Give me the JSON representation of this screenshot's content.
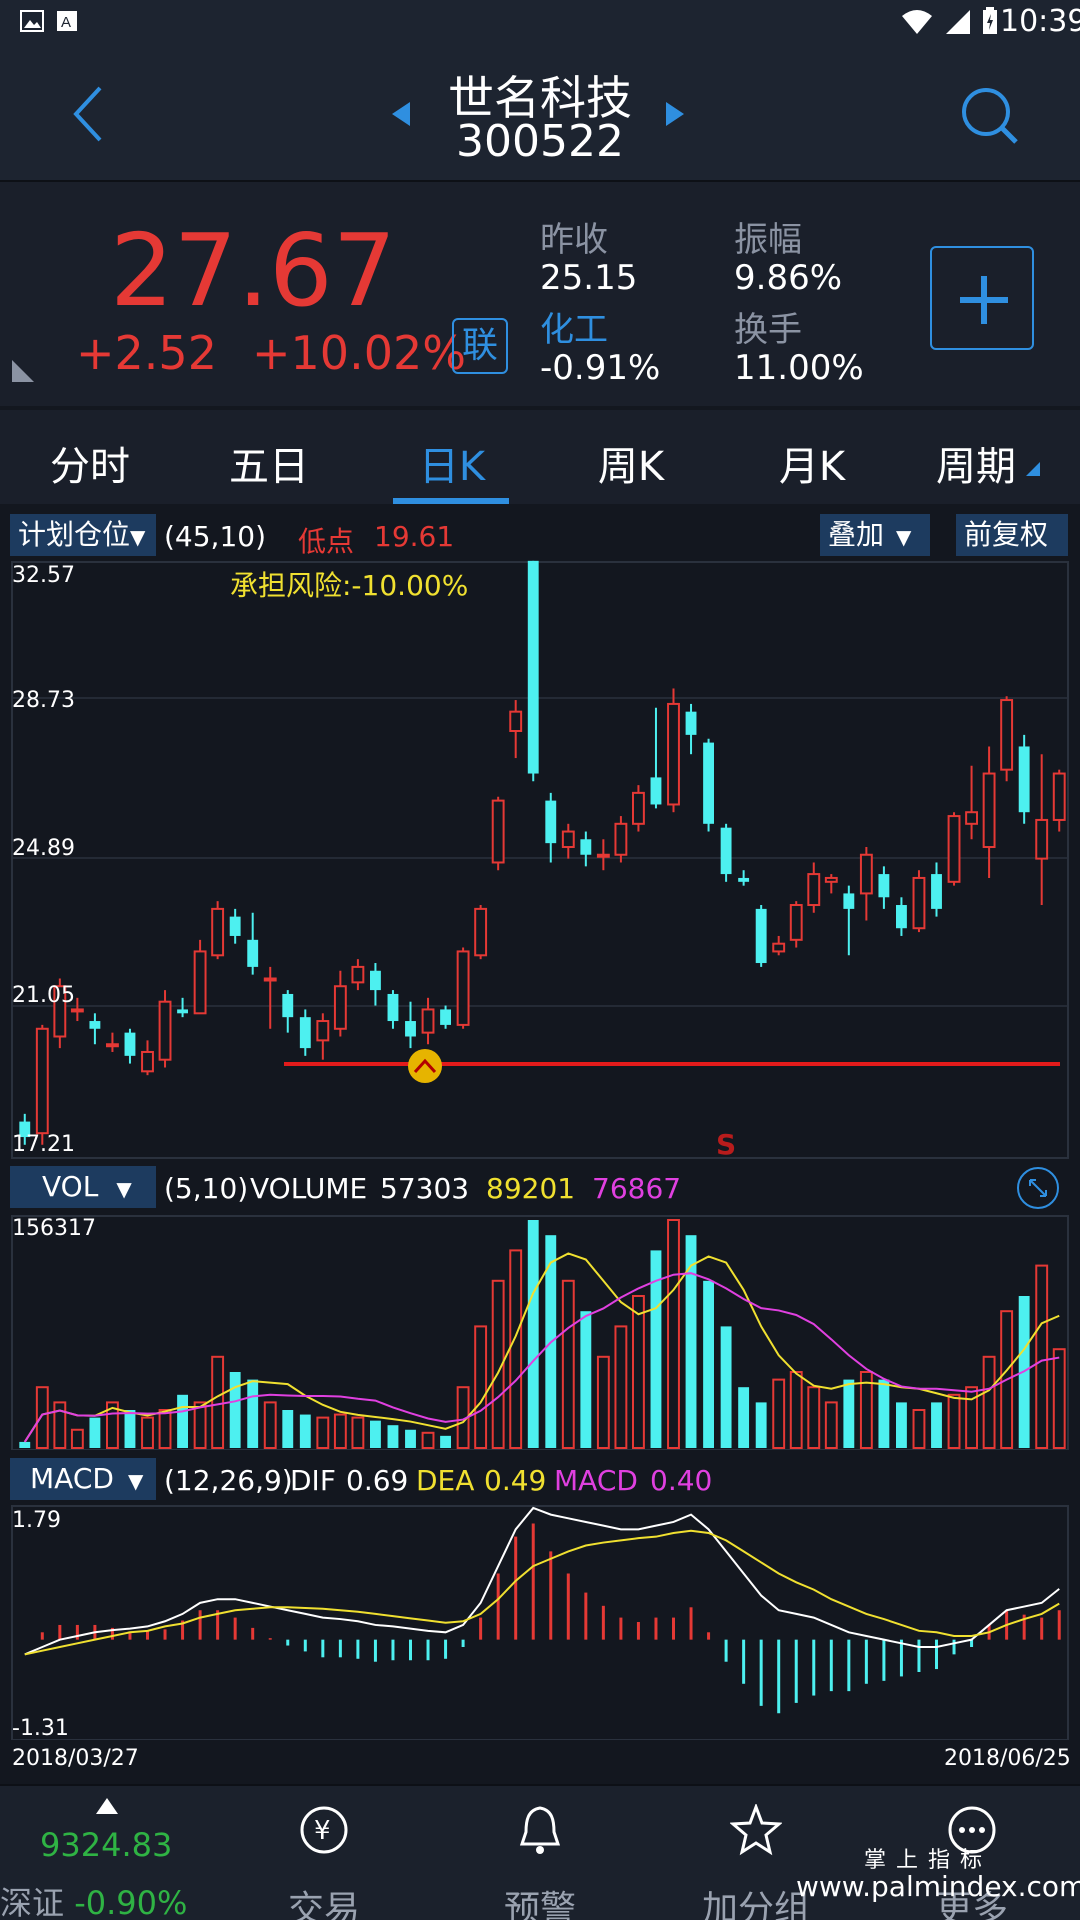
{
  "status_bar": {
    "time": "10:39"
  },
  "header": {
    "stock_name": "世名科技",
    "stock_code": "300522"
  },
  "quote": {
    "price": "27.67",
    "change": "+2.52",
    "change_pct": "+10.02%",
    "link_label": "联",
    "prev_close_label": "昨收",
    "prev_close": "25.15",
    "amplitude_label": "振幅",
    "amplitude": "9.86%",
    "sector_label": "化工",
    "sector_change": "-0.91%",
    "turnover_label": "换手",
    "turnover": "11.00%"
  },
  "tabs": [
    "分时",
    "五日",
    "日K",
    "周K",
    "月K",
    "周期"
  ],
  "kline": {
    "indicator_dropdown": "计划仓位",
    "params": "(45,10)",
    "low_label": "低点",
    "low_value": "19.61",
    "risk": "承担风险:-10.00%",
    "overlay_button": "叠加",
    "adjust_button": "前复权",
    "y_ticks": [
      "32.57",
      "28.73",
      "24.89",
      "21.05",
      "17.21"
    ],
    "signal": "S",
    "colors": {
      "up": "#e53935",
      "down": "#4df0f0"
    }
  },
  "volume": {
    "dropdown": "VOL",
    "params": "(5,10)",
    "volume_label": "VOLUME",
    "v1": "57303",
    "v2": "89201",
    "v3": "76867",
    "y_max": "156317"
  },
  "macd": {
    "dropdown": "MACD",
    "params": "(12,26,9)",
    "dif_label": "DIF",
    "dif": "0.69",
    "dea_label": "DEA",
    "dea": "0.49",
    "macd_label": "MACD",
    "macd": "0.40",
    "y_max": "1.79",
    "y_min": "-1.31",
    "date_start": "2018/03/27",
    "date_end": "2018/06/25"
  },
  "chart_data": {
    "type": "candlestick",
    "ylim": [
      17.21,
      32.57
    ],
    "candles": [
      [
        18.1,
        17.7,
        18.3,
        17.5
      ],
      [
        17.8,
        20.5,
        20.6,
        17.5
      ],
      [
        20.3,
        21.6,
        21.8,
        20.0
      ],
      [
        21.0,
        21.0,
        21.3,
        20.7
      ],
      [
        20.7,
        20.5,
        20.9,
        20.1
      ],
      [
        20.1,
        20.1,
        20.4,
        19.9
      ],
      [
        20.4,
        19.8,
        20.5,
        19.6
      ],
      [
        19.4,
        19.9,
        20.2,
        19.3
      ],
      [
        19.7,
        21.2,
        21.5,
        19.5
      ],
      [
        21.0,
        20.9,
        21.3,
        20.8
      ],
      [
        20.9,
        22.5,
        22.8,
        20.9
      ],
      [
        22.4,
        23.6,
        23.8,
        22.3
      ],
      [
        23.4,
        22.9,
        23.6,
        22.7
      ],
      [
        22.8,
        22.1,
        23.5,
        21.9
      ],
      [
        21.8,
        21.8,
        22.1,
        20.5
      ],
      [
        21.4,
        20.8,
        21.5,
        20.4
      ],
      [
        20.8,
        20.0,
        21.0,
        19.8
      ],
      [
        20.2,
        20.7,
        20.9,
        19.7
      ],
      [
        20.5,
        21.6,
        22.0,
        20.3
      ],
      [
        21.7,
        22.1,
        22.3,
        21.5
      ],
      [
        22.0,
        21.5,
        22.2,
        21.1
      ],
      [
        21.4,
        20.7,
        21.5,
        20.5
      ],
      [
        20.7,
        20.3,
        21.2,
        20.0
      ],
      [
        20.4,
        21.0,
        21.3,
        20.1
      ],
      [
        21.0,
        20.6,
        21.1,
        20.5
      ],
      [
        20.6,
        22.5,
        22.6,
        20.5
      ],
      [
        22.4,
        23.6,
        23.7,
        22.3
      ],
      [
        24.8,
        26.4,
        26.5,
        24.6
      ],
      [
        28.2,
        28.7,
        29.0,
        27.5
      ],
      [
        32.6,
        27.1,
        32.6,
        26.9
      ],
      [
        26.4,
        25.3,
        26.6,
        24.8
      ],
      [
        25.2,
        25.6,
        25.8,
        24.9
      ],
      [
        25.4,
        25.0,
        25.6,
        24.7
      ],
      [
        25.0,
        25.0,
        25.4,
        24.6
      ],
      [
        25.0,
        25.8,
        26.0,
        24.8
      ],
      [
        25.8,
        26.6,
        26.8,
        25.6
      ],
      [
        27.0,
        26.3,
        28.8,
        26.2
      ],
      [
        26.3,
        28.9,
        29.3,
        26.1
      ],
      [
        28.7,
        28.1,
        28.9,
        27.6
      ],
      [
        27.9,
        25.8,
        28.0,
        25.6
      ],
      [
        25.7,
        24.5,
        25.8,
        24.3
      ],
      [
        24.4,
        24.3,
        24.6,
        24.2
      ],
      [
        23.6,
        22.2,
        23.7,
        22.1
      ],
      [
        22.5,
        22.7,
        22.9,
        22.4
      ],
      [
        22.8,
        23.7,
        23.8,
        22.6
      ],
      [
        23.7,
        24.5,
        24.8,
        23.5
      ],
      [
        24.3,
        24.4,
        24.5,
        24.0
      ],
      [
        24.0,
        23.6,
        24.2,
        22.4
      ],
      [
        24.0,
        25.0,
        25.2,
        23.3
      ],
      [
        24.5,
        23.9,
        24.7,
        23.6
      ],
      [
        23.7,
        23.1,
        23.9,
        22.9
      ],
      [
        23.1,
        24.4,
        24.6,
        23.0
      ],
      [
        24.5,
        23.6,
        24.8,
        23.4
      ],
      [
        24.3,
        26.0,
        26.1,
        24.2
      ],
      [
        25.8,
        26.1,
        27.3,
        25.4
      ],
      [
        25.2,
        27.1,
        27.8,
        24.4
      ],
      [
        27.2,
        29.0,
        29.1,
        26.9
      ],
      [
        27.8,
        26.1,
        28.1,
        25.8
      ],
      [
        24.9,
        25.9,
        27.6,
        23.7
      ],
      [
        25.9,
        27.1,
        27.2,
        25.6
      ]
    ],
    "volume": [
      4,
      40,
      30,
      12,
      20,
      30,
      25,
      20,
      25,
      35,
      30,
      60,
      50,
      45,
      30,
      25,
      22,
      20,
      22,
      20,
      18,
      15,
      12,
      10,
      8,
      40,
      80,
      110,
      130,
      150,
      140,
      110,
      90,
      60,
      80,
      100,
      130,
      150,
      140,
      110,
      80,
      40,
      30,
      45,
      50,
      40,
      30,
      45,
      50,
      45,
      30,
      25,
      30,
      35,
      40,
      60,
      90,
      100,
      120,
      65
    ],
    "macd_dif": [
      -0.2,
      -0.1,
      0.0,
      0.05,
      0.1,
      0.13,
      0.15,
      0.18,
      0.25,
      0.35,
      0.5,
      0.55,
      0.55,
      0.5,
      0.45,
      0.4,
      0.35,
      0.3,
      0.28,
      0.25,
      0.2,
      0.18,
      0.15,
      0.12,
      0.1,
      0.2,
      0.5,
      1.0,
      1.5,
      1.79,
      1.7,
      1.65,
      1.6,
      1.55,
      1.5,
      1.5,
      1.55,
      1.6,
      1.7,
      1.5,
      1.2,
      0.9,
      0.6,
      0.4,
      0.35,
      0.3,
      0.2,
      0.1,
      0.05,
      0.0,
      -0.05,
      -0.1,
      -0.1,
      -0.05,
      0.0,
      0.2,
      0.4,
      0.45,
      0.5,
      0.69
    ],
    "macd_dea": [
      -0.2,
      -0.15,
      -0.1,
      -0.05,
      0.0,
      0.05,
      0.1,
      0.12,
      0.18,
      0.22,
      0.3,
      0.35,
      0.4,
      0.42,
      0.44,
      0.44,
      0.43,
      0.42,
      0.4,
      0.38,
      0.35,
      0.32,
      0.29,
      0.26,
      0.23,
      0.25,
      0.35,
      0.55,
      0.8,
      1.0,
      1.1,
      1.2,
      1.28,
      1.32,
      1.35,
      1.38,
      1.4,
      1.45,
      1.48,
      1.45,
      1.35,
      1.2,
      1.05,
      0.9,
      0.78,
      0.68,
      0.55,
      0.45,
      0.35,
      0.28,
      0.2,
      0.12,
      0.1,
      0.05,
      0.05,
      0.1,
      0.2,
      0.28,
      0.35,
      0.49
    ]
  }
}
